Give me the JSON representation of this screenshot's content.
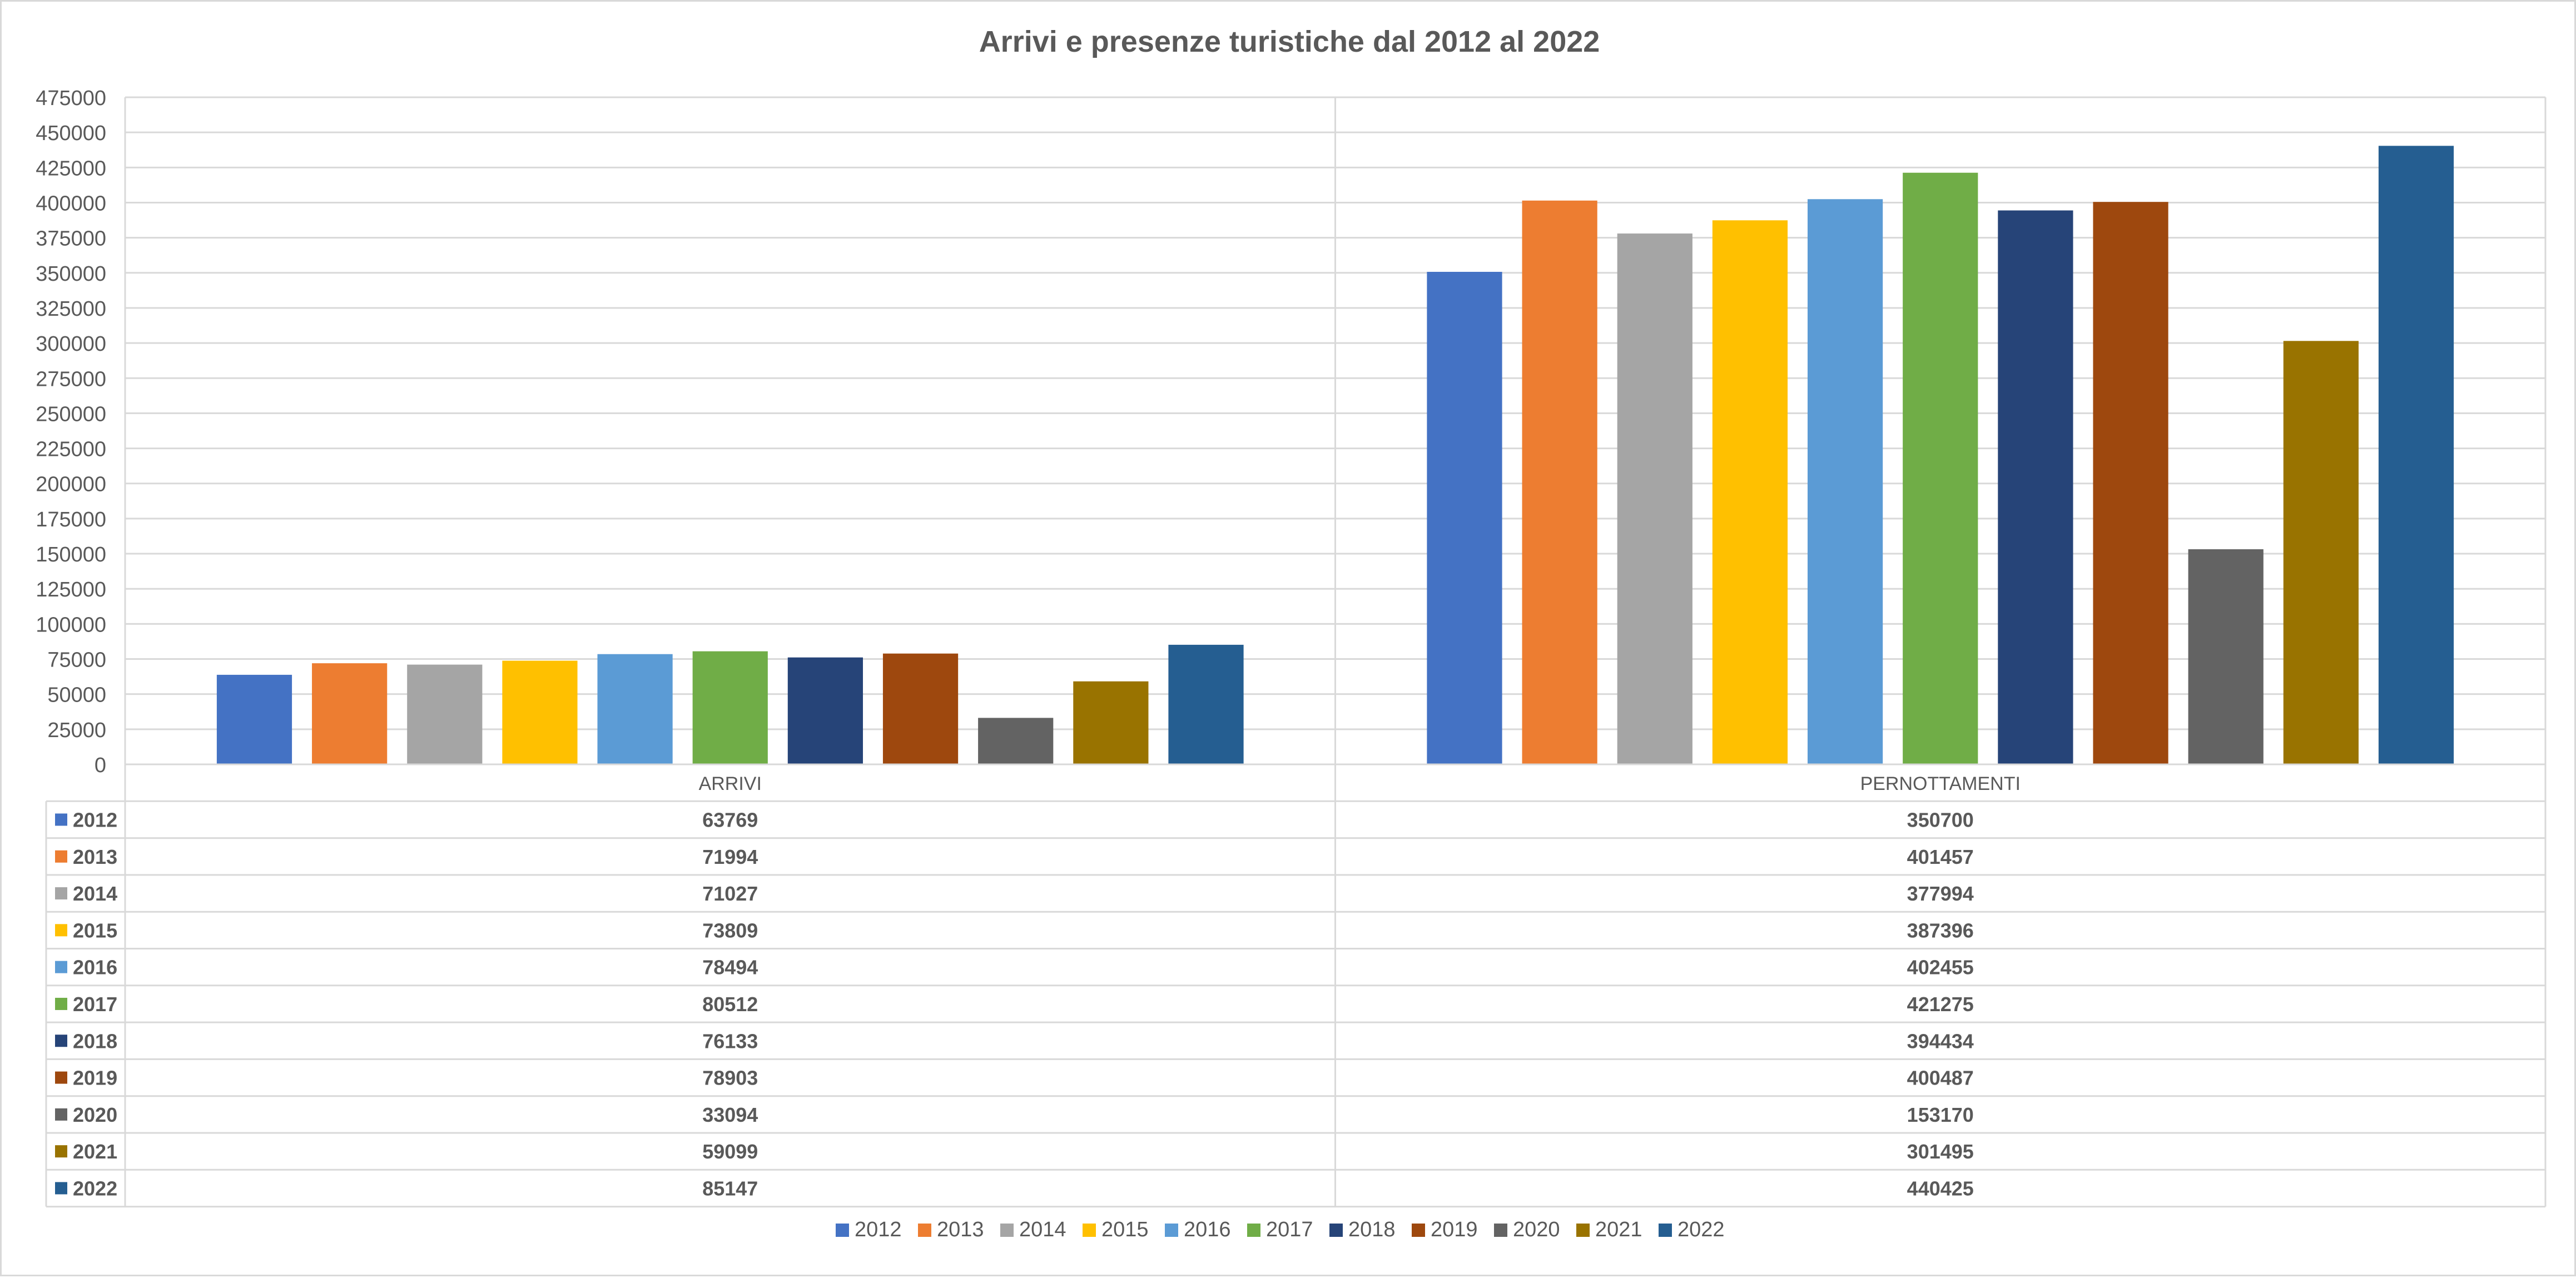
{
  "chart_data": {
    "type": "bar",
    "title": "Arrivi e presenze turistiche dal 2012 al 2022",
    "categories": [
      "ARRIVI",
      "PERNOTTAMENTI"
    ],
    "series": [
      {
        "name": "2012",
        "values": [
          63769,
          350700
        ],
        "color": "#4472C4"
      },
      {
        "name": "2013",
        "values": [
          71994,
          401457
        ],
        "color": "#ED7D31"
      },
      {
        "name": "2014",
        "values": [
          71027,
          377994
        ],
        "color": "#A5A5A5"
      },
      {
        "name": "2015",
        "values": [
          73809,
          387396
        ],
        "color": "#FFC000"
      },
      {
        "name": "2016",
        "values": [
          78494,
          402455
        ],
        "color": "#5B9BD5"
      },
      {
        "name": "2017",
        "values": [
          80512,
          421275
        ],
        "color": "#70AD47"
      },
      {
        "name": "2018",
        "values": [
          76133,
          394434
        ],
        "color": "#264478"
      },
      {
        "name": "2019",
        "values": [
          78903,
          400487
        ],
        "color": "#9E480E"
      },
      {
        "name": "2020",
        "values": [
          33094,
          153170
        ],
        "color": "#636363"
      },
      {
        "name": "2021",
        "values": [
          59099,
          301495
        ],
        "color": "#997300"
      },
      {
        "name": "2022",
        "values": [
          85147,
          440425
        ],
        "color": "#255E91"
      }
    ],
    "ylim": [
      0,
      475000
    ],
    "yticks": [
      0,
      25000,
      50000,
      75000,
      100000,
      125000,
      150000,
      175000,
      200000,
      225000,
      250000,
      275000,
      300000,
      325000,
      350000,
      375000,
      400000,
      425000,
      450000,
      475000
    ],
    "grid": true,
    "data_table": true,
    "legend_position": "bottom",
    "colors": {
      "text": "#595959",
      "grid": "#d9d9d9",
      "title": "#595959"
    }
  }
}
